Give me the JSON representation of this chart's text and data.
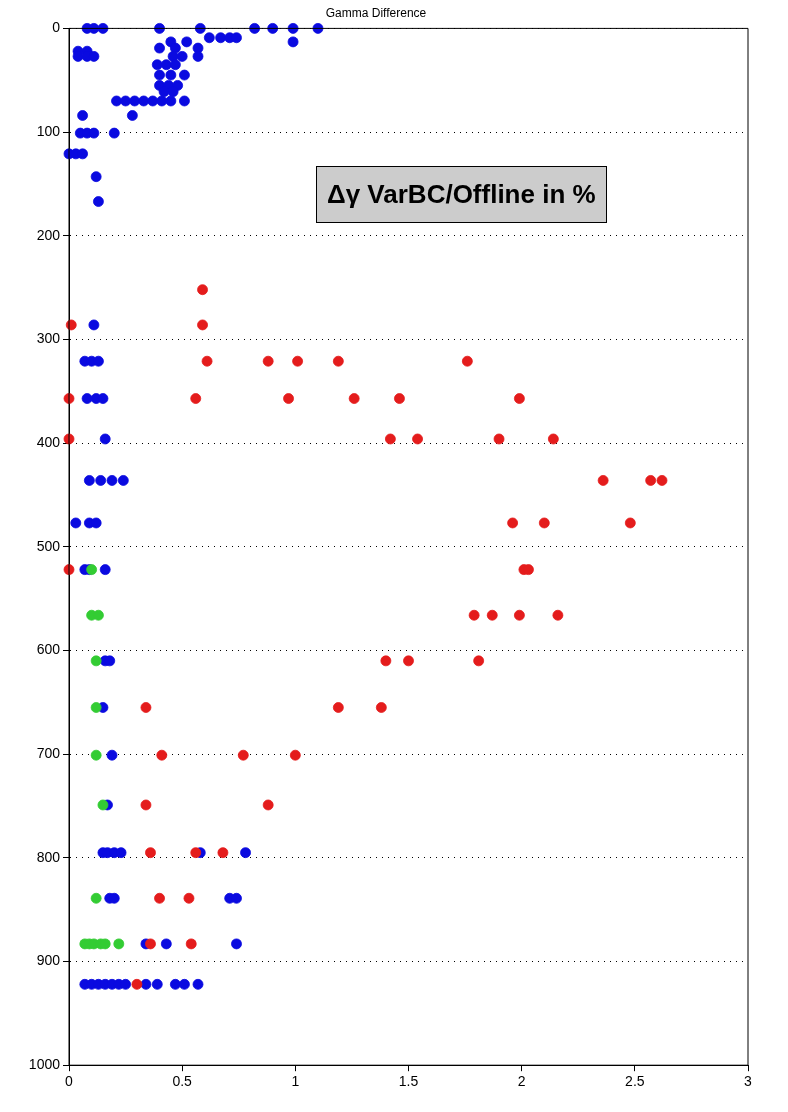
{
  "chart_data": {
    "type": "scatter",
    "title": "Gamma Difference",
    "annotations": [
      "Δγ VarBC/Offline in %"
    ],
    "xlim": [
      0,
      3
    ],
    "xticks": [
      0,
      0.5,
      1,
      1.5,
      2,
      2.5,
      3
    ],
    "ylim": [
      1000,
      0
    ],
    "yticks": [
      0,
      100,
      200,
      300,
      400,
      500,
      600,
      700,
      800,
      900,
      1000
    ],
    "grid": "y",
    "line_style": "dotted",
    "marker": "circle",
    "series": [
      {
        "color": "#0a0ae0",
        "x": [
          0.08,
          0.11,
          0.15,
          0.4,
          0.58,
          0.82,
          0.9,
          0.99,
          1.1,
          0.62,
          0.67,
          0.71,
          0.74,
          0.99,
          0.04,
          0.08,
          0.04,
          0.08,
          0.11,
          0.45,
          0.52,
          0.4,
          0.47,
          0.57,
          0.46,
          0.5,
          0.57,
          0.39,
          0.43,
          0.47,
          0.4,
          0.45,
          0.51,
          0.4,
          0.44,
          0.48,
          0.42,
          0.46,
          0.21,
          0.25,
          0.29,
          0.33,
          0.37,
          0.41,
          0.45,
          0.51,
          0.28,
          0.06,
          0.05,
          0.08,
          0.11,
          0.2,
          0.0,
          0.03,
          0.06,
          0.12,
          0.13,
          0.11,
          0.07,
          0.1,
          0.13,
          0.08,
          0.12,
          0.15,
          0.16,
          0.09,
          0.14,
          0.19,
          0.24,
          0.03,
          0.09,
          0.12,
          0.07,
          0.09,
          0.16,
          0.16,
          0.18,
          0.15,
          0.19,
          0.17,
          0.15,
          0.17,
          0.2,
          0.23,
          0.58,
          0.78,
          0.18,
          0.2,
          0.71,
          0.74,
          0.34,
          0.43,
          0.74,
          0.07,
          0.1,
          0.13,
          0.16,
          0.19,
          0.22,
          0.25,
          0.34,
          0.39,
          0.47,
          0.51,
          0.57
        ],
        "values": [
          0,
          0,
          0,
          0,
          0,
          0,
          0,
          0,
          0,
          9,
          9,
          9,
          9,
          13,
          22,
          22,
          27,
          27,
          27,
          13,
          13,
          19,
          19,
          19,
          27,
          27,
          27,
          35,
          35,
          35,
          45,
          45,
          45,
          55,
          55,
          55,
          61,
          61,
          70,
          70,
          70,
          70,
          70,
          70,
          70,
          70,
          84,
          84,
          101,
          101,
          101,
          101,
          121,
          121,
          121,
          143,
          167,
          286,
          321,
          321,
          321,
          357,
          357,
          357,
          396,
          436,
          436,
          436,
          436,
          477,
          477,
          477,
          522,
          522,
          522,
          610,
          610,
          655,
          701,
          749,
          795,
          795,
          795,
          795,
          795,
          795,
          839,
          839,
          839,
          839,
          883,
          883,
          883,
          922,
          922,
          922,
          922,
          922,
          922,
          922,
          922,
          922,
          922,
          922,
          922
        ]
      },
      {
        "color": "#e41c1c",
        "x": [
          0.59,
          0.01,
          0.59,
          0.61,
          0.88,
          1.01,
          1.19,
          1.76,
          0.0,
          0.56,
          0.97,
          1.26,
          1.46,
          1.99,
          0.0,
          1.42,
          1.54,
          1.9,
          2.14,
          2.36,
          2.57,
          2.62,
          1.96,
          2.1,
          2.48,
          0.0,
          2.01,
          2.03,
          1.79,
          1.87,
          1.99,
          2.16,
          1.4,
          1.5,
          1.81,
          0.34,
          1.19,
          1.38,
          0.41,
          0.77,
          1.0,
          0.34,
          0.88,
          0.36,
          0.56,
          0.68,
          0.4,
          0.53,
          0.36,
          0.54,
          0.3
        ],
        "values": [
          252,
          286,
          286,
          321,
          321,
          321,
          321,
          321,
          357,
          357,
          357,
          357,
          357,
          357,
          396,
          396,
          396,
          396,
          396,
          436,
          436,
          436,
          477,
          477,
          477,
          522,
          522,
          522,
          566,
          566,
          566,
          566,
          610,
          610,
          610,
          655,
          655,
          655,
          701,
          701,
          701,
          749,
          749,
          795,
          795,
          795,
          839,
          839,
          883,
          883,
          922
        ]
      },
      {
        "color": "#33cc33",
        "x": [
          0.1,
          0.1,
          0.13,
          0.12,
          0.12,
          0.12,
          0.15,
          0.12,
          0.07,
          0.09,
          0.11,
          0.14,
          0.16,
          0.22
        ],
        "values": [
          522,
          566,
          566,
          610,
          655,
          701,
          749,
          839,
          883,
          883,
          883,
          883,
          883,
          883
        ]
      }
    ]
  }
}
